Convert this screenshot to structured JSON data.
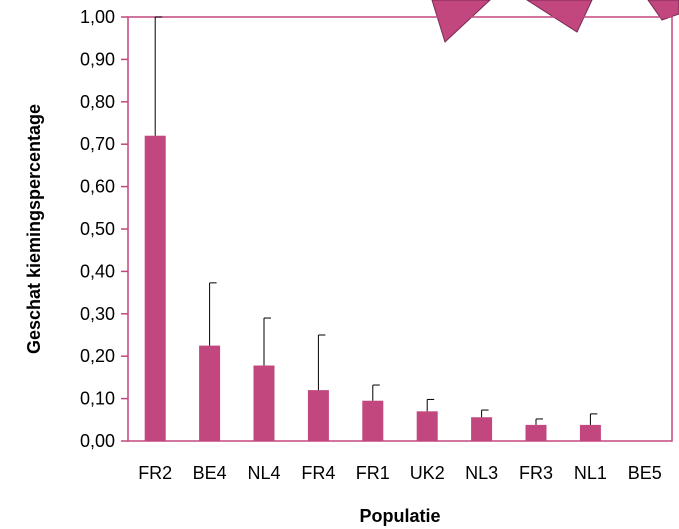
{
  "colors": {
    "bar": "#c2477f",
    "bar_stroke": "#a8336a",
    "frame": "#c2477f",
    "error_bar": "#000000",
    "shape_fill": "#c2477f",
    "shape_stroke": "#7a2a55"
  },
  "chart_data": {
    "type": "bar",
    "xlabel": "Populatie",
    "ylabel": "Geschat kiemingspercentage",
    "categories": [
      "FR2",
      "BE4",
      "NL4",
      "FR4",
      "FR1",
      "UK2",
      "NL3",
      "FR3",
      "NL1",
      "BE5"
    ],
    "values": [
      0.72,
      0.225,
      0.178,
      0.12,
      0.095,
      0.07,
      0.056,
      0.038,
      0.038,
      0.0
    ],
    "error_upper": [
      1.0,
      0.373,
      0.29,
      0.25,
      0.132,
      0.098,
      0.073,
      0.052,
      0.064,
      0.0
    ],
    "ylim": [
      0,
      1
    ],
    "yticks": [
      0,
      0.1,
      0.2,
      0.3,
      0.4,
      0.5,
      0.6,
      0.7,
      0.8,
      0.9,
      1.0
    ],
    "ytick_labels": [
      "0,00",
      "0,10",
      "0,20",
      "0,30",
      "0,40",
      "0,50",
      "0,60",
      "0,70",
      "0,80",
      "0,90",
      "1,00"
    ],
    "grid": false,
    "legend": "none"
  }
}
